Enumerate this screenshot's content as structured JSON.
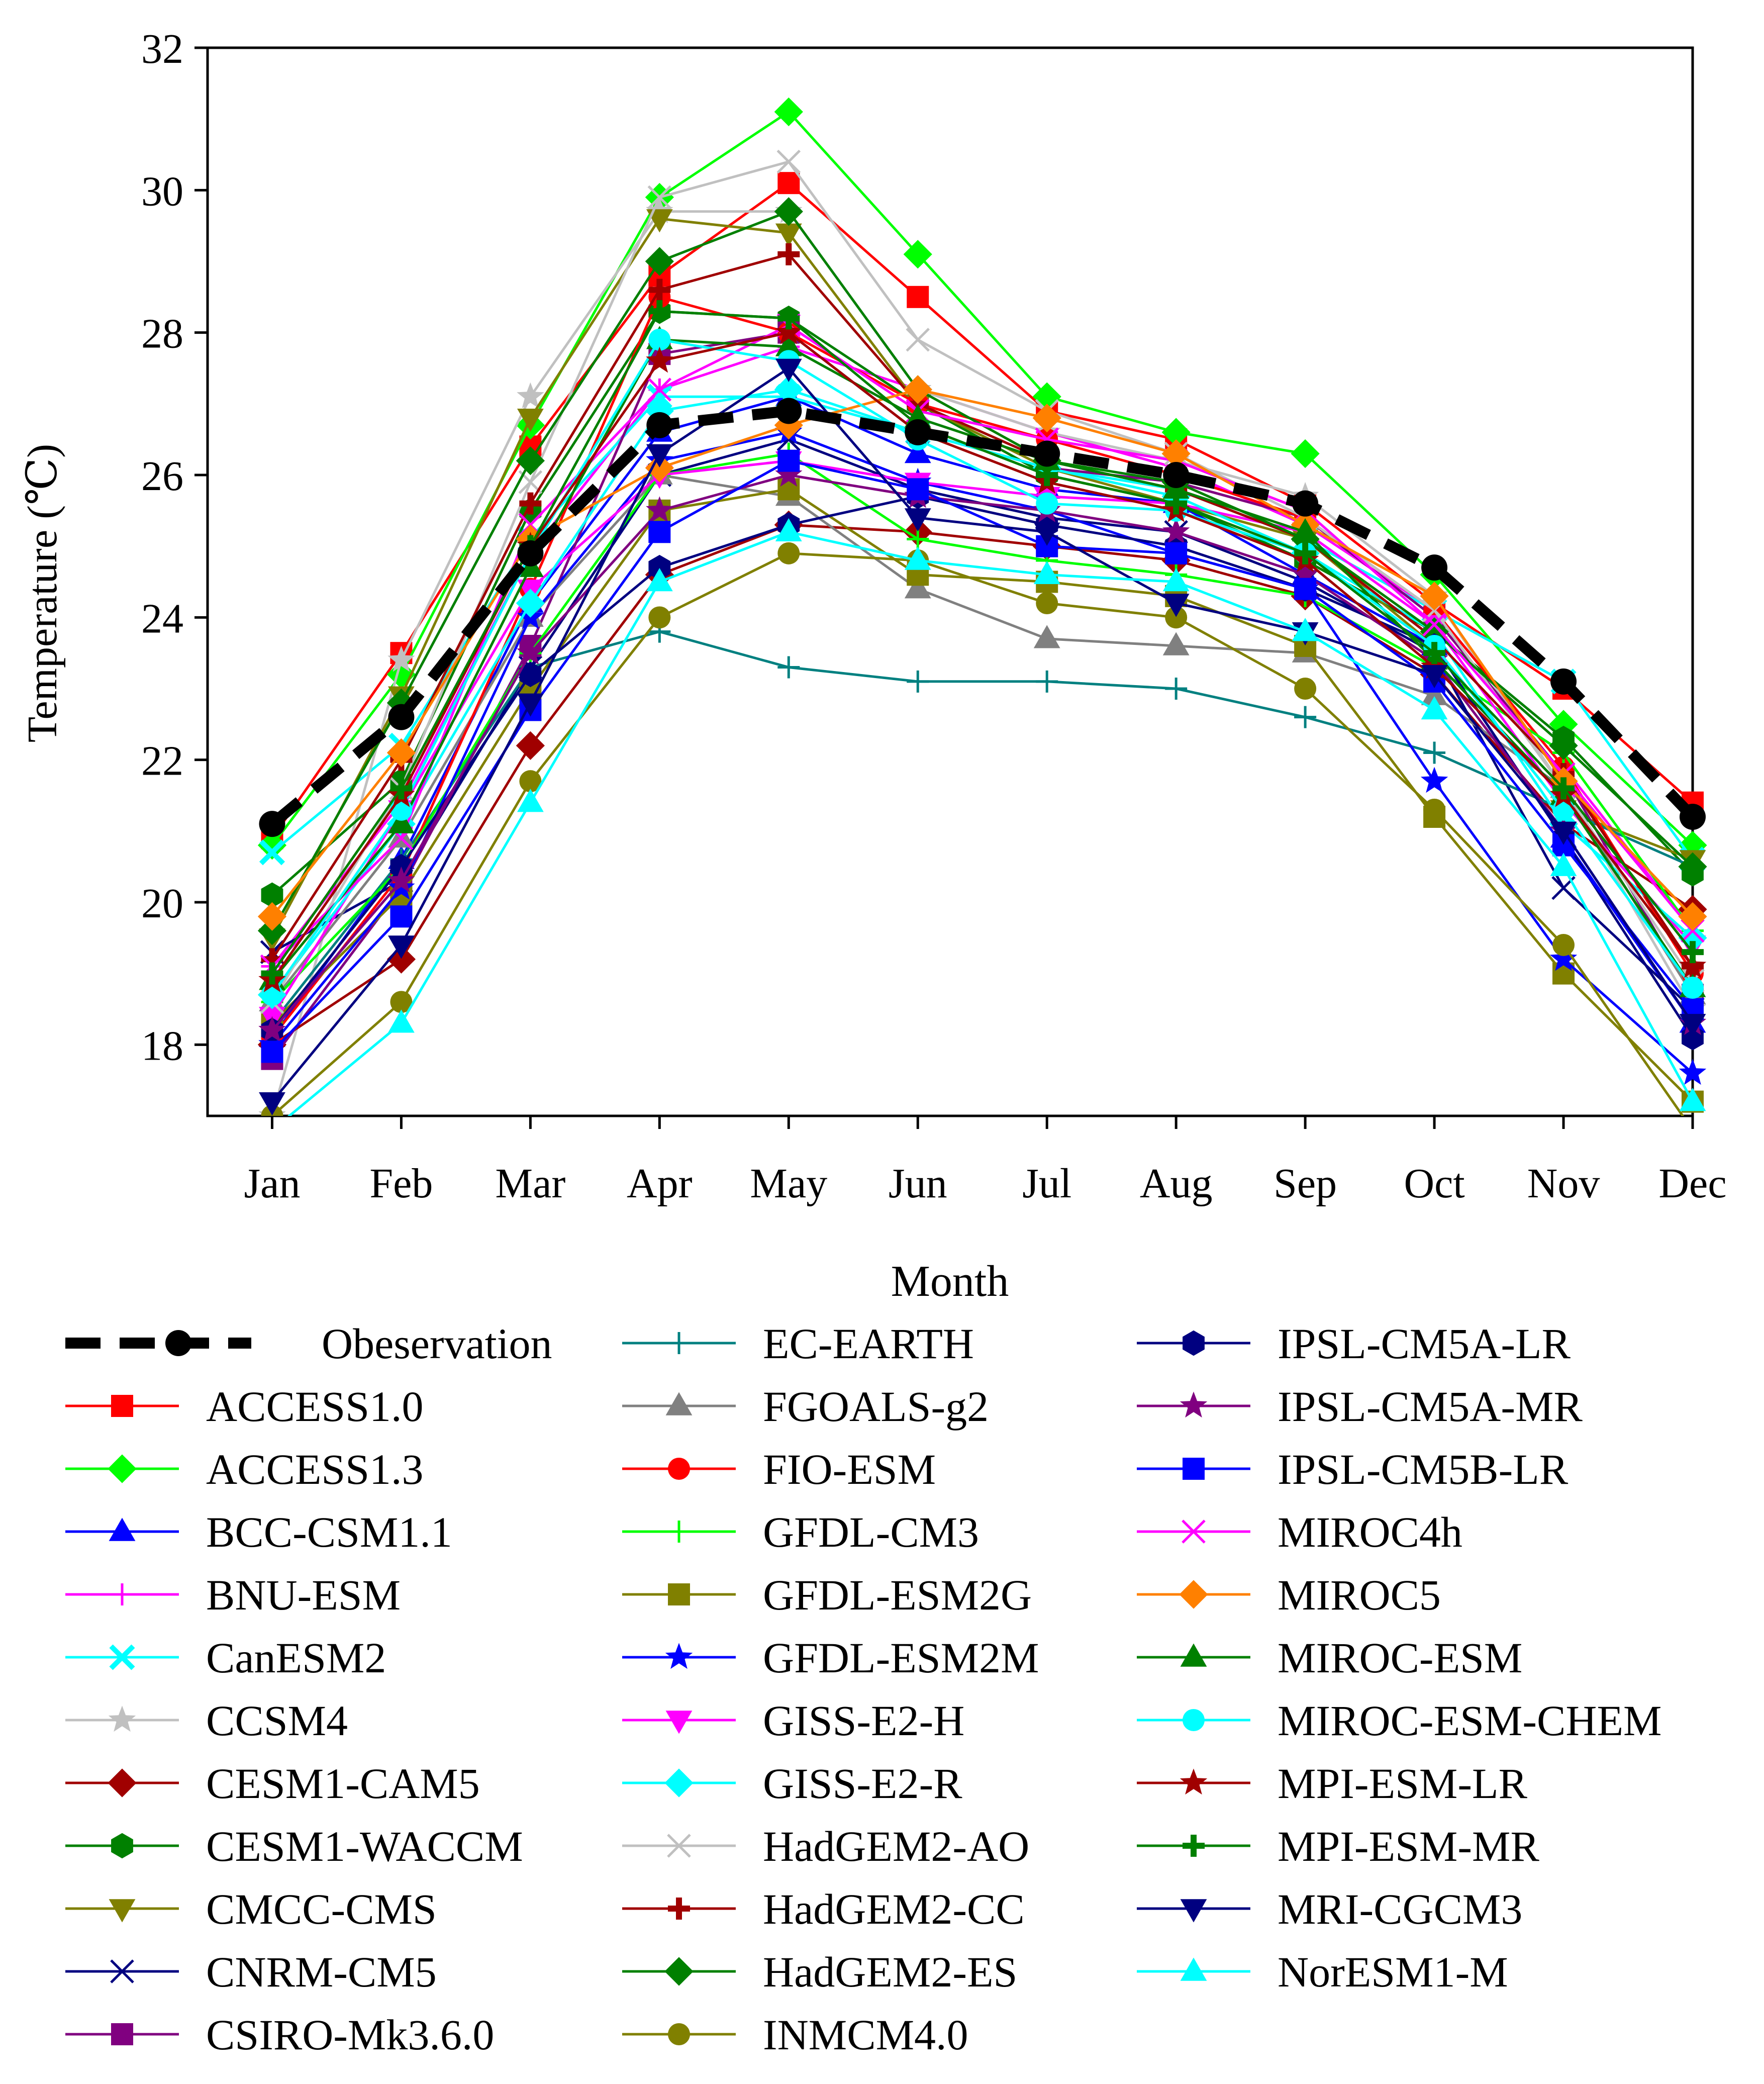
{
  "chart_data": {
    "type": "line",
    "title": "",
    "xlabel": "Month",
    "ylabel": "Temperature (℃)",
    "ylim": [
      17,
      32
    ],
    "yticks": [
      18,
      20,
      22,
      24,
      26,
      28,
      30,
      32
    ],
    "categories": [
      "Jan",
      "Feb",
      "Mar",
      "Apr",
      "May",
      "Jun",
      "Jul",
      "Aug",
      "Sep",
      "Oct",
      "Nov",
      "Dec"
    ],
    "series": [
      {
        "name": "Obeservation",
        "color": "#000000",
        "marker": "circle",
        "dashed": true,
        "values": [
          21.1,
          22.6,
          24.9,
          26.7,
          26.9,
          26.6,
          26.3,
          26.0,
          25.6,
          24.7,
          23.1,
          21.2
        ]
      },
      {
        "name": "ACCESS1.0",
        "color": "#ff0000",
        "marker": "square",
        "values": [
          20.9,
          23.5,
          26.4,
          28.8,
          30.1,
          28.5,
          26.9,
          26.5,
          25.6,
          24.2,
          23.0,
          21.4
        ]
      },
      {
        "name": "ACCESS1.3",
        "color": "#00ff00",
        "marker": "diamond",
        "values": [
          20.8,
          23.2,
          26.7,
          29.9,
          31.1,
          29.1,
          27.1,
          26.6,
          26.3,
          24.6,
          22.5,
          20.8
        ]
      },
      {
        "name": "BCC-CSM1.1",
        "color": "#0000ff",
        "marker": "triangle-up",
        "values": [
          18.1,
          20.6,
          24.2,
          26.6,
          27.1,
          26.3,
          25.8,
          25.6,
          24.6,
          23.6,
          20.9,
          18.3
        ]
      },
      {
        "name": "BNU-ESM",
        "color": "#ff00ff",
        "marker": "plus",
        "values": [
          19.1,
          21.4,
          24.9,
          27.2,
          27.8,
          27.2,
          26.6,
          26.1,
          25.3,
          24.1,
          21.9,
          19.6
        ]
      },
      {
        "name": "CanESM2",
        "color": "#00ffff",
        "marker": "x-thick",
        "values": [
          20.7,
          22.2,
          25.1,
          27.1,
          27.1,
          26.6,
          26.1,
          25.8,
          25.1,
          24.1,
          23.1,
          20.6
        ]
      },
      {
        "name": "CCSM4",
        "color": "#c0c0c0",
        "marker": "star",
        "values": [
          17.0,
          23.4,
          27.1,
          29.7,
          29.7,
          27.2,
          26.6,
          26.2,
          25.7,
          24.3,
          21.6,
          18.5
        ]
      },
      {
        "name": "CESM1-CAM5",
        "color": "#a00000",
        "marker": "diamond",
        "values": [
          18.0,
          19.2,
          22.2,
          24.6,
          25.3,
          25.2,
          25.0,
          24.8,
          24.3,
          23.2,
          21.1,
          19.9
        ]
      },
      {
        "name": "CESM1-WACCM",
        "color": "#008000",
        "marker": "hexagon",
        "values": [
          20.1,
          21.7,
          25.5,
          28.3,
          28.2,
          27.0,
          26.0,
          25.6,
          24.8,
          23.8,
          22.3,
          20.4
        ]
      },
      {
        "name": "CMCC-CMS",
        "color": "#808000",
        "marker": "triangle-down",
        "values": [
          19.5,
          22.9,
          26.8,
          29.6,
          29.4,
          27.0,
          26.1,
          25.6,
          25.1,
          23.6,
          21.3,
          20.6
        ]
      },
      {
        "name": "CNRM-CM5",
        "color": "#000080",
        "marker": "x",
        "values": [
          19.3,
          20.3,
          23.3,
          26.0,
          26.5,
          25.8,
          25.4,
          25.2,
          24.5,
          23.5,
          20.2,
          18.5
        ]
      },
      {
        "name": "CSIRO-Mk3.6.0",
        "color": "#800080",
        "marker": "square",
        "values": [
          17.8,
          20.2,
          23.6,
          27.7,
          28.0,
          26.6,
          26.1,
          25.9,
          25.4,
          24.0,
          21.8,
          18.7
        ]
      },
      {
        "name": "EC-EARTH",
        "color": "#008080",
        "marker": "plus",
        "values": [
          18.3,
          20.6,
          23.3,
          23.8,
          23.3,
          23.1,
          23.1,
          23.0,
          22.6,
          22.1,
          21.3,
          20.5
        ]
      },
      {
        "name": "FGOALS-g2",
        "color": "#808080",
        "marker": "triangle-up",
        "values": [
          18.6,
          20.9,
          24.0,
          26.0,
          25.7,
          24.4,
          23.7,
          23.6,
          23.5,
          22.9,
          21.6,
          18.7
        ]
      },
      {
        "name": "FIO-ESM",
        "color": "#ff0000",
        "marker": "circle",
        "values": [
          18.1,
          20.4,
          24.4,
          28.5,
          28.0,
          27.0,
          26.5,
          26.0,
          25.4,
          24.1,
          21.9,
          19.0
        ]
      },
      {
        "name": "GFDL-CM3",
        "color": "#00ff00",
        "marker": "plus",
        "values": [
          18.6,
          20.5,
          23.5,
          26.0,
          26.3,
          25.1,
          24.8,
          24.6,
          24.3,
          23.3,
          22.1,
          19.6
        ]
      },
      {
        "name": "GFDL-ESM2G",
        "color": "#808000",
        "marker": "square",
        "values": [
          18.3,
          20.1,
          23.0,
          25.5,
          25.8,
          24.6,
          24.5,
          24.3,
          23.6,
          21.2,
          19.0,
          17.2
        ]
      },
      {
        "name": "GFDL-ESM2M",
        "color": "#0000ff",
        "marker": "star",
        "values": [
          18.0,
          20.2,
          24.0,
          26.2,
          26.6,
          25.9,
          25.5,
          24.9,
          24.4,
          21.7,
          19.2,
          17.6
        ]
      },
      {
        "name": "GISS-E2-H",
        "color": "#ff00ff",
        "marker": "triangle-down",
        "values": [
          18.4,
          21.3,
          24.4,
          26.0,
          26.2,
          25.9,
          25.7,
          25.6,
          25.2,
          23.9,
          21.4,
          19.4
        ]
      },
      {
        "name": "GISS-E2-R",
        "color": "#00ffff",
        "marker": "diamond",
        "values": [
          18.7,
          21.1,
          24.2,
          26.9,
          27.2,
          26.6,
          26.1,
          25.7,
          24.9,
          23.8,
          21.1,
          19.5
        ]
      },
      {
        "name": "HadGEM2-AO",
        "color": "#c0c0c0",
        "marker": "x",
        "values": [
          18.6,
          21.6,
          25.9,
          29.9,
          30.4,
          27.9,
          26.9,
          26.3,
          25.4,
          24.1,
          21.6,
          18.9
        ]
      },
      {
        "name": "HadGEM2-CC",
        "color": "#a00000",
        "marker": "plus-thick",
        "values": [
          19.2,
          22.0,
          25.6,
          28.6,
          29.1,
          27.0,
          26.2,
          25.8,
          25.1,
          23.7,
          21.8,
          19.1
        ]
      },
      {
        "name": "HadGEM2-ES",
        "color": "#008000",
        "marker": "diamond",
        "values": [
          19.6,
          22.8,
          26.2,
          29.0,
          29.7,
          27.2,
          26.2,
          25.9,
          25.1,
          23.8,
          22.2,
          20.5
        ]
      },
      {
        "name": "INMCM4.0",
        "color": "#808000",
        "marker": "circle",
        "values": [
          17.0,
          18.6,
          21.7,
          24.0,
          24.9,
          24.8,
          24.2,
          24.0,
          23.0,
          21.3,
          19.4,
          16.8
        ]
      },
      {
        "name": "IPSL-CM5A-LR",
        "color": "#000080",
        "marker": "hexagon",
        "values": [
          18.2,
          20.5,
          23.2,
          24.7,
          25.3,
          25.7,
          25.3,
          25.0,
          24.4,
          23.6,
          20.9,
          18.1
        ]
      },
      {
        "name": "IPSL-CM5A-MR",
        "color": "#800080",
        "marker": "star",
        "values": [
          18.2,
          20.3,
          23.5,
          25.5,
          26.0,
          25.7,
          25.5,
          25.2,
          24.6,
          23.4,
          21.0,
          18.3
        ]
      },
      {
        "name": "IPSL-CM5B-LR",
        "color": "#0000ff",
        "marker": "square",
        "values": [
          17.9,
          19.8,
          22.7,
          25.2,
          26.2,
          25.8,
          25.0,
          24.9,
          24.4,
          23.1,
          20.8,
          18.5
        ]
      },
      {
        "name": "MIROC4h",
        "color": "#ff00ff",
        "marker": "x",
        "values": [
          19.1,
          20.9,
          25.3,
          27.2,
          28.1,
          26.9,
          26.5,
          26.2,
          25.5,
          23.9,
          21.8,
          19.6
        ]
      },
      {
        "name": "MIROC5",
        "color": "#ff8000",
        "marker": "diamond",
        "values": [
          19.8,
          22.1,
          25.1,
          26.1,
          26.7,
          27.2,
          26.8,
          26.3,
          25.3,
          24.3,
          21.7,
          19.8
        ]
      },
      {
        "name": "MIROC-ESM",
        "color": "#008000",
        "marker": "triangle-up",
        "values": [
          18.9,
          21.1,
          24.7,
          27.9,
          27.8,
          26.8,
          26.2,
          25.8,
          25.2,
          23.4,
          21.5,
          18.8
        ]
      },
      {
        "name": "MIROC-ESM-CHEM",
        "color": "#00ffff",
        "marker": "circle",
        "values": [
          18.7,
          21.3,
          24.9,
          27.9,
          27.6,
          26.5,
          25.6,
          25.5,
          24.9,
          23.6,
          21.3,
          18.8
        ]
      },
      {
        "name": "MPI-ESM-LR",
        "color": "#a00000",
        "marker": "star",
        "values": [
          18.9,
          21.5,
          25.0,
          27.6,
          28.0,
          26.6,
          25.9,
          25.5,
          24.8,
          23.3,
          21.5,
          19.1
        ]
      },
      {
        "name": "MPI-ESM-MR",
        "color": "#008000",
        "marker": "plus-thick",
        "values": [
          19.0,
          21.6,
          25.0,
          28.3,
          28.2,
          26.7,
          26.0,
          25.6,
          24.9,
          23.5,
          21.6,
          19.3
        ]
      },
      {
        "name": "MRI-CGCM3",
        "color": "#000080",
        "marker": "triangle-down",
        "values": [
          17.2,
          19.4,
          22.8,
          26.3,
          27.5,
          25.4,
          25.2,
          24.2,
          23.8,
          23.2,
          21.0,
          18.3
        ]
      },
      {
        "name": "NorESM1-M",
        "color": "#00ffff",
        "marker": "triangle-up",
        "values": [
          16.8,
          18.3,
          21.4,
          24.5,
          25.2,
          24.8,
          24.6,
          24.5,
          23.8,
          22.7,
          20.5,
          17.2
        ]
      }
    ]
  }
}
